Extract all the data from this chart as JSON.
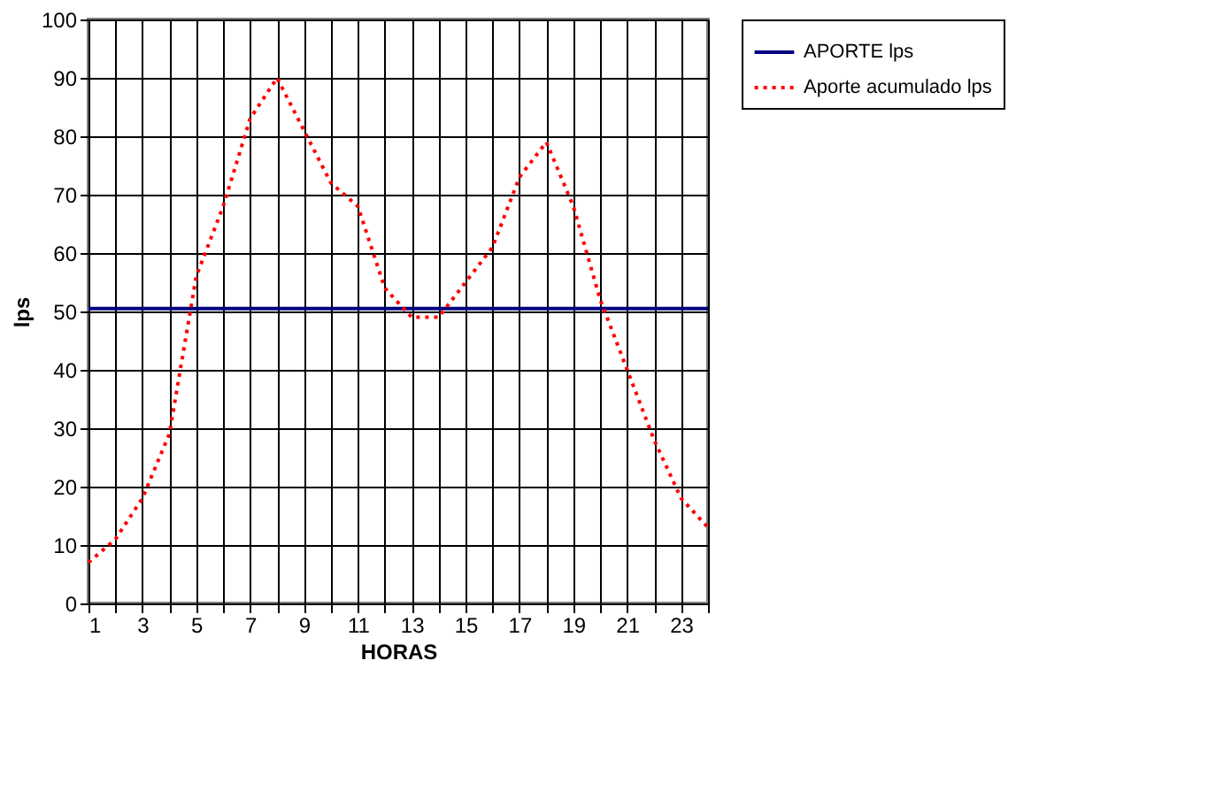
{
  "chart_data": {
    "type": "line",
    "xlabel": "HORAS",
    "ylabel": "lps",
    "x": [
      1,
      2,
      3,
      4,
      5,
      6,
      7,
      8,
      9,
      10,
      11,
      12,
      13,
      14,
      15,
      16,
      17,
      18,
      19,
      20,
      21,
      22,
      23,
      24
    ],
    "series": [
      {
        "name": "APORTE lps",
        "color": "#000080",
        "line_style": "solid",
        "values": [
          50.5,
          50.5,
          50.5,
          50.5,
          50.5,
          50.5,
          50.5,
          50.5,
          50.5,
          50.5,
          50.5,
          50.5,
          50.5,
          50.5,
          50.5,
          50.5,
          50.5,
          50.5,
          50.5,
          50.5,
          50.5,
          50.5,
          50.5,
          50.5
        ]
      },
      {
        "name": "Aporte acumulado lps",
        "color": "#ff0000",
        "line_style": "dotted",
        "values": [
          7,
          11,
          18,
          29,
          56,
          68,
          83,
          90,
          81,
          72,
          68,
          54,
          49,
          49,
          55,
          61,
          73,
          79,
          68,
          52,
          40,
          28,
          18,
          13
        ]
      }
    ],
    "xlim": [
      1,
      24
    ],
    "xticks": [
      1,
      {
        "value": 2,
        "label": null
      },
      3,
      {
        "value": 4,
        "label": null
      },
      5,
      {
        "value": 6,
        "label": null
      },
      7,
      {
        "value": 8,
        "label": null
      },
      9,
      {
        "value": 10,
        "label": null
      },
      11,
      {
        "value": 12,
        "label": null
      },
      13,
      {
        "value": 14,
        "label": null
      },
      15,
      {
        "value": 16,
        "label": null
      },
      17,
      {
        "value": 18,
        "label": null
      },
      19,
      {
        "value": 20,
        "label": null
      },
      21,
      {
        "value": 22,
        "label": null
      },
      23,
      {
        "value": 24,
        "label": null
      }
    ],
    "ylim": [
      0,
      100
    ],
    "yticks": [
      0,
      10,
      20,
      30,
      40,
      50,
      60,
      70,
      80,
      90,
      100
    ],
    "grid": true,
    "legend": "right",
    "marker": "none"
  }
}
